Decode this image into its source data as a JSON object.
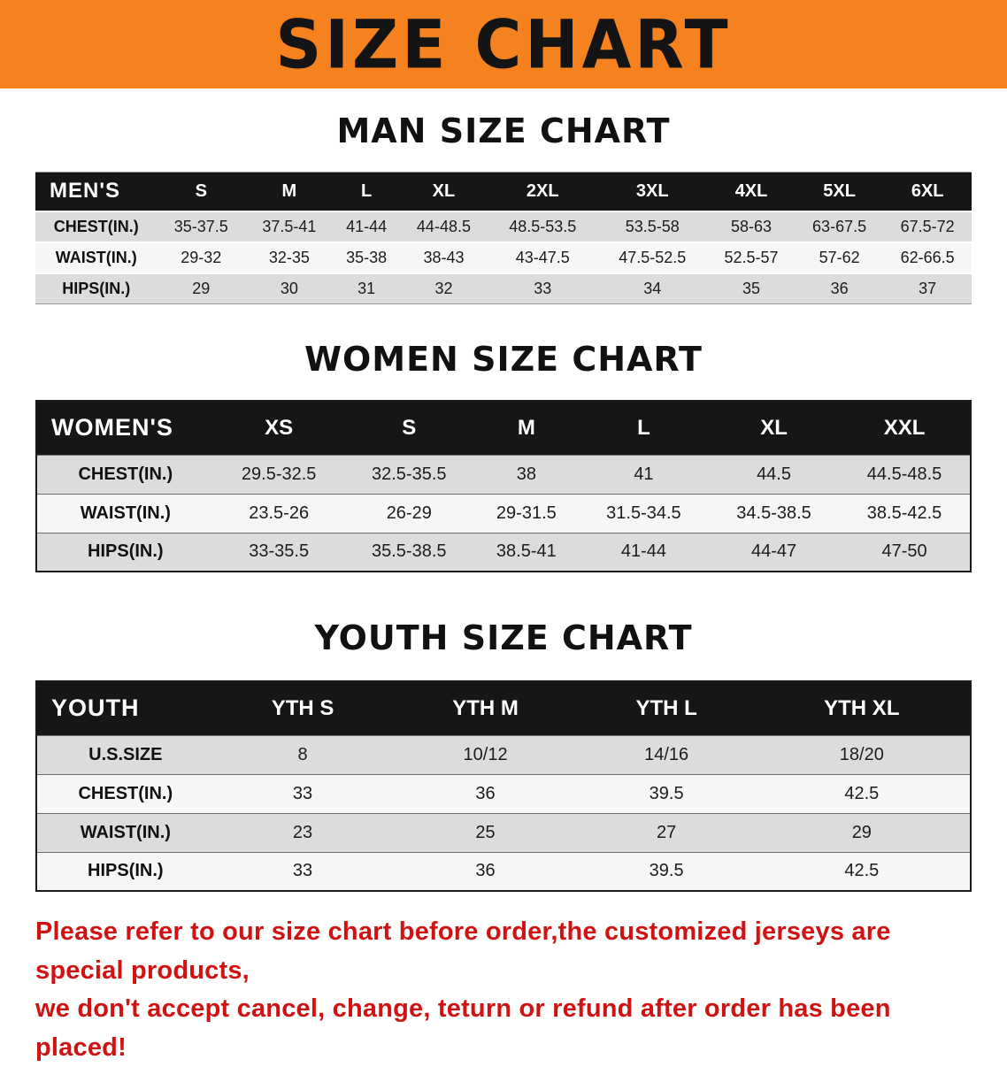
{
  "banner": {
    "title": "SIZE CHART",
    "bg_color": "#f5821f"
  },
  "sections": [
    {
      "id": "men",
      "heading": "MAN SIZE CHART",
      "table": {
        "header": [
          "MEN'S",
          "S",
          "M",
          "L",
          "XL",
          "2XL",
          "3XL",
          "4XL",
          "5XL",
          "6XL"
        ],
        "rows": [
          {
            "label": "CHEST(IN.)",
            "values": [
              "35-37.5",
              "37.5-41",
              "41-44",
              "44-48.5",
              "48.5-53.5",
              "53.5-58",
              "58-63",
              "63-67.5",
              "67.5-72"
            ]
          },
          {
            "label": "WAIST(IN.)",
            "values": [
              "29-32",
              "32-35",
              "35-38",
              "38-43",
              "43-47.5",
              "47.5-52.5",
              "52.5-57",
              "57-62",
              "62-66.5"
            ]
          },
          {
            "label": "HIPS(IN.)",
            "values": [
              "29",
              "30",
              "31",
              "32",
              "33",
              "34",
              "35",
              "36",
              "37"
            ]
          }
        ]
      }
    },
    {
      "id": "women",
      "heading": "WOMEN SIZE CHART",
      "table": {
        "header": [
          "WOMEN'S",
          "XS",
          "S",
          "M",
          "L",
          "XL",
          "XXL"
        ],
        "rows": [
          {
            "label": "CHEST(IN.)",
            "values": [
              "29.5-32.5",
              "32.5-35.5",
              "38",
              "41",
              "44.5",
              "44.5-48.5"
            ]
          },
          {
            "label": "WAIST(IN.)",
            "values": [
              "23.5-26",
              "26-29",
              "29-31.5",
              "31.5-34.5",
              "34.5-38.5",
              "38.5-42.5"
            ]
          },
          {
            "label": "HIPS(IN.)",
            "values": [
              "33-35.5",
              "35.5-38.5",
              "38.5-41",
              "41-44",
              "44-47",
              "47-50"
            ]
          }
        ]
      }
    },
    {
      "id": "youth",
      "heading": "YOUTH SIZE CHART",
      "table": {
        "header": [
          "YOUTH",
          "YTH S",
          "YTH M",
          "YTH L",
          "YTH XL"
        ],
        "rows": [
          {
            "label": "U.S.SIZE",
            "values": [
              "8",
              "10/12",
              "14/16",
              "18/20"
            ]
          },
          {
            "label": "CHEST(IN.)",
            "values": [
              "33",
              "36",
              "39.5",
              "42.5"
            ]
          },
          {
            "label": "WAIST(IN.)",
            "values": [
              "23",
              "25",
              "27",
              "29"
            ]
          },
          {
            "label": "HIPS(IN.)",
            "values": [
              "33",
              "36",
              "39.5",
              "42.5"
            ]
          }
        ]
      }
    }
  ],
  "disclaimer": {
    "line1": "Please refer to our size chart before order,the customized jerseys are special products,",
    "line2": "we don't accept cancel, change, teturn or refund after order has been placed!",
    "color": "#d01212"
  }
}
